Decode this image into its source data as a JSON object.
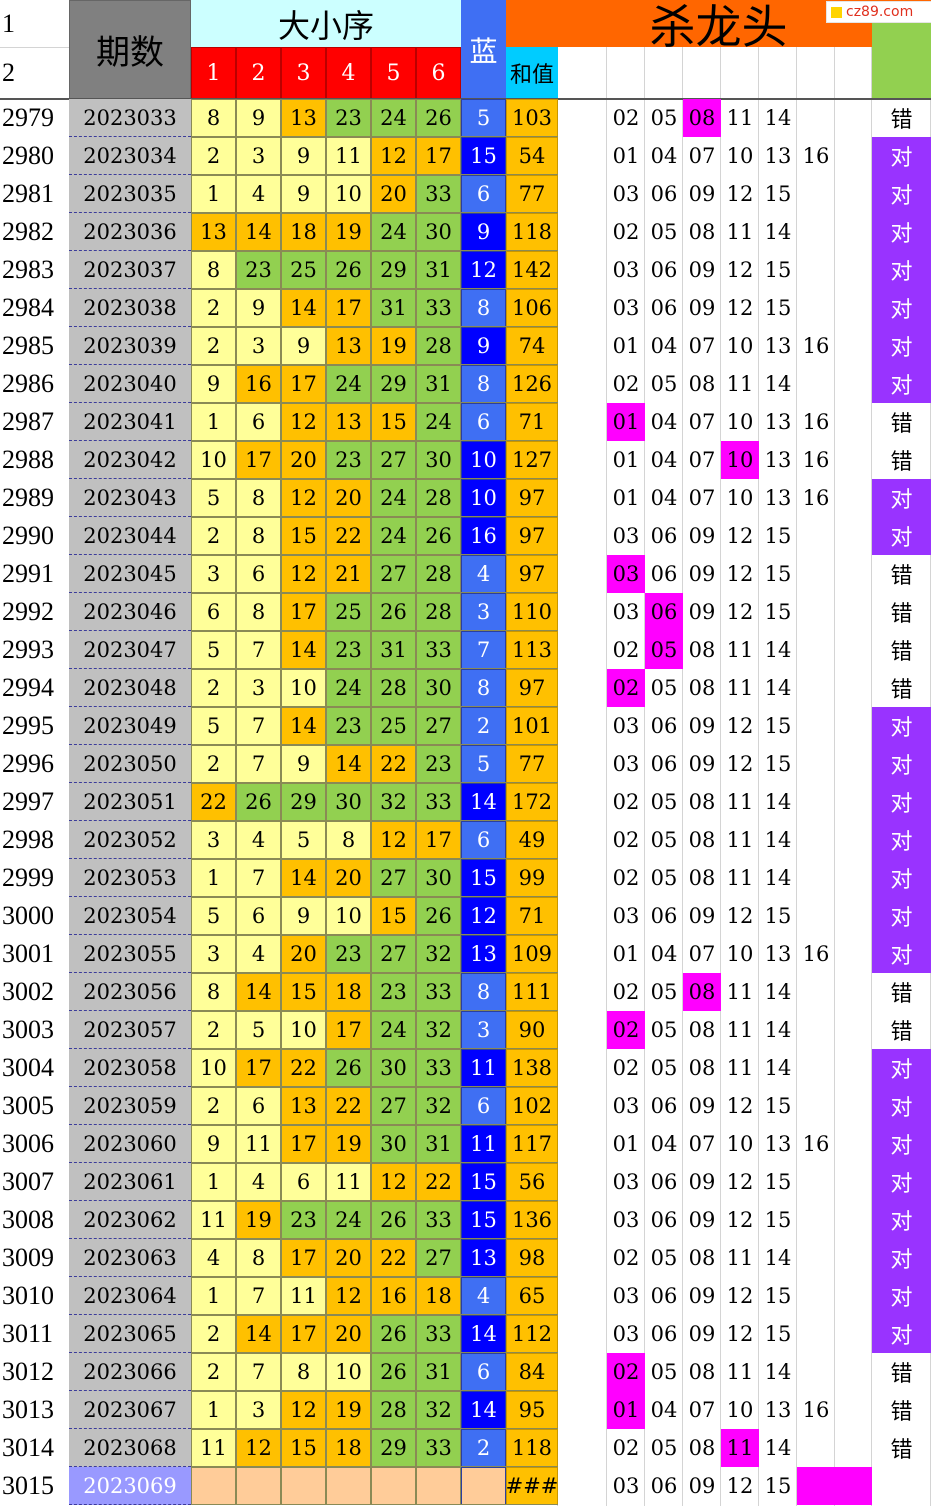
{
  "header": {
    "row_labels": [
      "1",
      "2"
    ],
    "period_title": "期数",
    "order_title": "大小序",
    "ball_cols": [
      "1",
      "2",
      "3",
      "4",
      "5",
      "6"
    ],
    "blue_title": "蓝",
    "sum_title": "和值",
    "kill_title": "杀龙头"
  },
  "watermark": "cz89.com",
  "colors": {
    "ball_yellow": "#ffff99",
    "ball_orange": "#ffc000",
    "ball_green": "#92d050",
    "blue_light": "#3f6ff3",
    "blue_dark": "#0000ff",
    "sum_bg": "#ffc000",
    "period_bg": "#c0c0c0",
    "hit_magenta": "#ff00ff",
    "right_purple": "#9933ff",
    "header_red": "#ff0000",
    "header_cyan": "#ccffff",
    "header_orange": "#ff6600",
    "header_green": "#92d050",
    "sum_header_cyan": "#00ccff",
    "last_row_bg": "#ffcc99",
    "last_period_bg": "#9999ff"
  },
  "rows": [
    {
      "no": "2979",
      "period": "2023033",
      "balls": [
        "8",
        "9",
        "13",
        "23",
        "24",
        "26"
      ],
      "ball_colors": [
        "y",
        "y",
        "o",
        "g",
        "g",
        "g"
      ],
      "blue": "5",
      "blue_dark": false,
      "sum": "103",
      "kill": [
        "02",
        "05",
        "08",
        "11",
        "14",
        ""
      ],
      "hit": 2,
      "result": "错"
    },
    {
      "no": "2980",
      "period": "2023034",
      "balls": [
        "2",
        "3",
        "9",
        "11",
        "12",
        "17"
      ],
      "ball_colors": [
        "y",
        "y",
        "y",
        "y",
        "o",
        "o"
      ],
      "blue": "15",
      "blue_dark": true,
      "sum": "54",
      "kill": [
        "01",
        "04",
        "07",
        "10",
        "13",
        "16"
      ],
      "hit": -1,
      "result": "对"
    },
    {
      "no": "2981",
      "period": "2023035",
      "balls": [
        "1",
        "4",
        "9",
        "10",
        "20",
        "33"
      ],
      "ball_colors": [
        "y",
        "y",
        "y",
        "y",
        "o",
        "g"
      ],
      "blue": "6",
      "blue_dark": false,
      "sum": "77",
      "kill": [
        "03",
        "06",
        "09",
        "12",
        "15",
        ""
      ],
      "hit": -1,
      "result": "对"
    },
    {
      "no": "2982",
      "period": "2023036",
      "balls": [
        "13",
        "14",
        "18",
        "19",
        "24",
        "30"
      ],
      "ball_colors": [
        "o",
        "o",
        "o",
        "o",
        "g",
        "g"
      ],
      "blue": "9",
      "blue_dark": true,
      "sum": "118",
      "kill": [
        "02",
        "05",
        "08",
        "11",
        "14",
        ""
      ],
      "hit": -1,
      "result": "对"
    },
    {
      "no": "2983",
      "period": "2023037",
      "balls": [
        "8",
        "23",
        "25",
        "26",
        "29",
        "31"
      ],
      "ball_colors": [
        "y",
        "g",
        "g",
        "g",
        "g",
        "g"
      ],
      "blue": "12",
      "blue_dark": true,
      "sum": "142",
      "kill": [
        "03",
        "06",
        "09",
        "12",
        "15",
        ""
      ],
      "hit": -1,
      "result": "对"
    },
    {
      "no": "2984",
      "period": "2023038",
      "balls": [
        "2",
        "9",
        "14",
        "17",
        "31",
        "33"
      ],
      "ball_colors": [
        "y",
        "y",
        "o",
        "o",
        "g",
        "g"
      ],
      "blue": "8",
      "blue_dark": false,
      "sum": "106",
      "kill": [
        "03",
        "06",
        "09",
        "12",
        "15",
        ""
      ],
      "hit": -1,
      "result": "对"
    },
    {
      "no": "2985",
      "period": "2023039",
      "balls": [
        "2",
        "3",
        "9",
        "13",
        "19",
        "28"
      ],
      "ball_colors": [
        "y",
        "y",
        "y",
        "o",
        "o",
        "g"
      ],
      "blue": "9",
      "blue_dark": true,
      "sum": "74",
      "kill": [
        "01",
        "04",
        "07",
        "10",
        "13",
        "16"
      ],
      "hit": -1,
      "result": "对"
    },
    {
      "no": "2986",
      "period": "2023040",
      "balls": [
        "9",
        "16",
        "17",
        "24",
        "29",
        "31"
      ],
      "ball_colors": [
        "y",
        "o",
        "o",
        "g",
        "g",
        "g"
      ],
      "blue": "8",
      "blue_dark": false,
      "sum": "126",
      "kill": [
        "02",
        "05",
        "08",
        "11",
        "14",
        ""
      ],
      "hit": -1,
      "result": "对"
    },
    {
      "no": "2987",
      "period": "2023041",
      "balls": [
        "1",
        "6",
        "12",
        "13",
        "15",
        "24"
      ],
      "ball_colors": [
        "y",
        "y",
        "o",
        "o",
        "o",
        "g"
      ],
      "blue": "6",
      "blue_dark": false,
      "sum": "71",
      "kill": [
        "01",
        "04",
        "07",
        "10",
        "13",
        "16"
      ],
      "hit": 0,
      "result": "错"
    },
    {
      "no": "2988",
      "period": "2023042",
      "balls": [
        "10",
        "17",
        "20",
        "23",
        "27",
        "30"
      ],
      "ball_colors": [
        "y",
        "o",
        "o",
        "g",
        "g",
        "g"
      ],
      "blue": "10",
      "blue_dark": true,
      "sum": "127",
      "kill": [
        "01",
        "04",
        "07",
        "10",
        "13",
        "16"
      ],
      "hit": 3,
      "result": "错"
    },
    {
      "no": "2989",
      "period": "2023043",
      "balls": [
        "5",
        "8",
        "12",
        "20",
        "24",
        "28"
      ],
      "ball_colors": [
        "y",
        "y",
        "o",
        "o",
        "g",
        "g"
      ],
      "blue": "10",
      "blue_dark": true,
      "sum": "97",
      "kill": [
        "01",
        "04",
        "07",
        "10",
        "13",
        "16"
      ],
      "hit": -1,
      "result": "对"
    },
    {
      "no": "2990",
      "period": "2023044",
      "balls": [
        "2",
        "8",
        "15",
        "22",
        "24",
        "26"
      ],
      "ball_colors": [
        "y",
        "y",
        "o",
        "o",
        "g",
        "g"
      ],
      "blue": "16",
      "blue_dark": true,
      "sum": "97",
      "kill": [
        "03",
        "06",
        "09",
        "12",
        "15",
        ""
      ],
      "hit": -1,
      "result": "对"
    },
    {
      "no": "2991",
      "period": "2023045",
      "balls": [
        "3",
        "6",
        "12",
        "21",
        "27",
        "28"
      ],
      "ball_colors": [
        "y",
        "y",
        "o",
        "o",
        "g",
        "g"
      ],
      "blue": "4",
      "blue_dark": false,
      "sum": "97",
      "kill": [
        "03",
        "06",
        "09",
        "12",
        "15",
        ""
      ],
      "hit": 0,
      "result": "错"
    },
    {
      "no": "2992",
      "period": "2023046",
      "balls": [
        "6",
        "8",
        "17",
        "25",
        "26",
        "28"
      ],
      "ball_colors": [
        "y",
        "y",
        "o",
        "g",
        "g",
        "g"
      ],
      "blue": "3",
      "blue_dark": false,
      "sum": "110",
      "kill": [
        "03",
        "06",
        "09",
        "12",
        "15",
        ""
      ],
      "hit": 1,
      "result": "错"
    },
    {
      "no": "2993",
      "period": "2023047",
      "balls": [
        "5",
        "7",
        "14",
        "23",
        "31",
        "33"
      ],
      "ball_colors": [
        "y",
        "y",
        "o",
        "g",
        "g",
        "g"
      ],
      "blue": "7",
      "blue_dark": false,
      "sum": "113",
      "kill": [
        "02",
        "05",
        "08",
        "11",
        "14",
        ""
      ],
      "hit": 1,
      "result": "错"
    },
    {
      "no": "2994",
      "period": "2023048",
      "balls": [
        "2",
        "3",
        "10",
        "24",
        "28",
        "30"
      ],
      "ball_colors": [
        "y",
        "y",
        "y",
        "g",
        "g",
        "g"
      ],
      "blue": "8",
      "blue_dark": false,
      "sum": "97",
      "kill": [
        "02",
        "05",
        "08",
        "11",
        "14",
        ""
      ],
      "hit": 0,
      "result": "错"
    },
    {
      "no": "2995",
      "period": "2023049",
      "balls": [
        "5",
        "7",
        "14",
        "23",
        "25",
        "27"
      ],
      "ball_colors": [
        "y",
        "y",
        "o",
        "g",
        "g",
        "g"
      ],
      "blue": "2",
      "blue_dark": false,
      "sum": "101",
      "kill": [
        "03",
        "06",
        "09",
        "12",
        "15",
        ""
      ],
      "hit": -1,
      "result": "对"
    },
    {
      "no": "2996",
      "period": "2023050",
      "balls": [
        "2",
        "7",
        "9",
        "14",
        "22",
        "23"
      ],
      "ball_colors": [
        "y",
        "y",
        "y",
        "o",
        "o",
        "g"
      ],
      "blue": "5",
      "blue_dark": false,
      "sum": "77",
      "kill": [
        "03",
        "06",
        "09",
        "12",
        "15",
        ""
      ],
      "hit": -1,
      "result": "对"
    },
    {
      "no": "2997",
      "period": "2023051",
      "balls": [
        "22",
        "26",
        "29",
        "30",
        "32",
        "33"
      ],
      "ball_colors": [
        "o",
        "g",
        "g",
        "g",
        "g",
        "g"
      ],
      "blue": "14",
      "blue_dark": true,
      "sum": "172",
      "kill": [
        "02",
        "05",
        "08",
        "11",
        "14",
        ""
      ],
      "hit": -1,
      "result": "对"
    },
    {
      "no": "2998",
      "period": "2023052",
      "balls": [
        "3",
        "4",
        "5",
        "8",
        "12",
        "17"
      ],
      "ball_colors": [
        "y",
        "y",
        "y",
        "y",
        "o",
        "o"
      ],
      "blue": "6",
      "blue_dark": false,
      "sum": "49",
      "kill": [
        "02",
        "05",
        "08",
        "11",
        "14",
        ""
      ],
      "hit": -1,
      "result": "对"
    },
    {
      "no": "2999",
      "period": "2023053",
      "balls": [
        "1",
        "7",
        "14",
        "20",
        "27",
        "30"
      ],
      "ball_colors": [
        "y",
        "y",
        "o",
        "o",
        "g",
        "g"
      ],
      "blue": "15",
      "blue_dark": true,
      "sum": "99",
      "kill": [
        "02",
        "05",
        "08",
        "11",
        "14",
        ""
      ],
      "hit": -1,
      "result": "对"
    },
    {
      "no": "3000",
      "period": "2023054",
      "balls": [
        "5",
        "6",
        "9",
        "10",
        "15",
        "26"
      ],
      "ball_colors": [
        "y",
        "y",
        "y",
        "y",
        "o",
        "g"
      ],
      "blue": "12",
      "blue_dark": true,
      "sum": "71",
      "kill": [
        "03",
        "06",
        "09",
        "12",
        "15",
        ""
      ],
      "hit": -1,
      "result": "对"
    },
    {
      "no": "3001",
      "period": "2023055",
      "balls": [
        "3",
        "4",
        "20",
        "23",
        "27",
        "32"
      ],
      "ball_colors": [
        "y",
        "y",
        "o",
        "g",
        "g",
        "g"
      ],
      "blue": "13",
      "blue_dark": true,
      "sum": "109",
      "kill": [
        "01",
        "04",
        "07",
        "10",
        "13",
        "16"
      ],
      "hit": -1,
      "result": "对"
    },
    {
      "no": "3002",
      "period": "2023056",
      "balls": [
        "8",
        "14",
        "15",
        "18",
        "23",
        "33"
      ],
      "ball_colors": [
        "y",
        "o",
        "o",
        "o",
        "g",
        "g"
      ],
      "blue": "8",
      "blue_dark": false,
      "sum": "111",
      "kill": [
        "02",
        "05",
        "08",
        "11",
        "14",
        ""
      ],
      "hit": 2,
      "result": "错"
    },
    {
      "no": "3003",
      "period": "2023057",
      "balls": [
        "2",
        "5",
        "10",
        "17",
        "24",
        "32"
      ],
      "ball_colors": [
        "y",
        "y",
        "y",
        "o",
        "g",
        "g"
      ],
      "blue": "3",
      "blue_dark": false,
      "sum": "90",
      "kill": [
        "02",
        "05",
        "08",
        "11",
        "14",
        ""
      ],
      "hit": 0,
      "result": "错"
    },
    {
      "no": "3004",
      "period": "2023058",
      "balls": [
        "10",
        "17",
        "22",
        "26",
        "30",
        "33"
      ],
      "ball_colors": [
        "y",
        "o",
        "o",
        "g",
        "g",
        "g"
      ],
      "blue": "11",
      "blue_dark": true,
      "sum": "138",
      "kill": [
        "02",
        "05",
        "08",
        "11",
        "14",
        ""
      ],
      "hit": -1,
      "result": "对"
    },
    {
      "no": "3005",
      "period": "2023059",
      "balls": [
        "2",
        "6",
        "13",
        "22",
        "27",
        "32"
      ],
      "ball_colors": [
        "y",
        "y",
        "o",
        "o",
        "g",
        "g"
      ],
      "blue": "6",
      "blue_dark": false,
      "sum": "102",
      "kill": [
        "03",
        "06",
        "09",
        "12",
        "15",
        ""
      ],
      "hit": -1,
      "result": "对"
    },
    {
      "no": "3006",
      "period": "2023060",
      "balls": [
        "9",
        "11",
        "17",
        "19",
        "30",
        "31"
      ],
      "ball_colors": [
        "y",
        "y",
        "o",
        "o",
        "g",
        "g"
      ],
      "blue": "11",
      "blue_dark": true,
      "sum": "117",
      "kill": [
        "01",
        "04",
        "07",
        "10",
        "13",
        "16"
      ],
      "hit": -1,
      "result": "对"
    },
    {
      "no": "3007",
      "period": "2023061",
      "balls": [
        "1",
        "4",
        "6",
        "11",
        "12",
        "22"
      ],
      "ball_colors": [
        "y",
        "y",
        "y",
        "y",
        "o",
        "o"
      ],
      "blue": "15",
      "blue_dark": true,
      "sum": "56",
      "kill": [
        "03",
        "06",
        "09",
        "12",
        "15",
        ""
      ],
      "hit": -1,
      "result": "对"
    },
    {
      "no": "3008",
      "period": "2023062",
      "balls": [
        "11",
        "19",
        "23",
        "24",
        "26",
        "33"
      ],
      "ball_colors": [
        "y",
        "o",
        "g",
        "g",
        "g",
        "g"
      ],
      "blue": "15",
      "blue_dark": true,
      "sum": "136",
      "kill": [
        "03",
        "06",
        "09",
        "12",
        "15",
        ""
      ],
      "hit": -1,
      "result": "对"
    },
    {
      "no": "3009",
      "period": "2023063",
      "balls": [
        "4",
        "8",
        "17",
        "20",
        "22",
        "27"
      ],
      "ball_colors": [
        "y",
        "y",
        "o",
        "o",
        "o",
        "g"
      ],
      "blue": "13",
      "blue_dark": true,
      "sum": "98",
      "kill": [
        "02",
        "05",
        "08",
        "11",
        "14",
        ""
      ],
      "hit": -1,
      "result": "对"
    },
    {
      "no": "3010",
      "period": "2023064",
      "balls": [
        "1",
        "7",
        "11",
        "12",
        "16",
        "18"
      ],
      "ball_colors": [
        "y",
        "y",
        "y",
        "o",
        "o",
        "o"
      ],
      "blue": "4",
      "blue_dark": false,
      "sum": "65",
      "kill": [
        "03",
        "06",
        "09",
        "12",
        "15",
        ""
      ],
      "hit": -1,
      "result": "对"
    },
    {
      "no": "3011",
      "period": "2023065",
      "balls": [
        "2",
        "14",
        "17",
        "20",
        "26",
        "33"
      ],
      "ball_colors": [
        "y",
        "o",
        "o",
        "o",
        "g",
        "g"
      ],
      "blue": "14",
      "blue_dark": true,
      "sum": "112",
      "kill": [
        "03",
        "06",
        "09",
        "12",
        "15",
        ""
      ],
      "hit": -1,
      "result": "对"
    },
    {
      "no": "3012",
      "period": "2023066",
      "balls": [
        "2",
        "7",
        "8",
        "10",
        "26",
        "31"
      ],
      "ball_colors": [
        "y",
        "y",
        "y",
        "y",
        "g",
        "g"
      ],
      "blue": "6",
      "blue_dark": false,
      "sum": "84",
      "kill": [
        "02",
        "05",
        "08",
        "11",
        "14",
        ""
      ],
      "hit": 0,
      "result": "错"
    },
    {
      "no": "3013",
      "period": "2023067",
      "balls": [
        "1",
        "3",
        "12",
        "19",
        "28",
        "32"
      ],
      "ball_colors": [
        "y",
        "y",
        "o",
        "o",
        "g",
        "g"
      ],
      "blue": "14",
      "blue_dark": true,
      "sum": "95",
      "kill": [
        "01",
        "04",
        "07",
        "10",
        "13",
        "16"
      ],
      "hit": 0,
      "result": "错"
    },
    {
      "no": "3014",
      "period": "2023068",
      "balls": [
        "11",
        "12",
        "15",
        "18",
        "29",
        "33"
      ],
      "ball_colors": [
        "y",
        "o",
        "o",
        "o",
        "g",
        "g"
      ],
      "blue": "2",
      "blue_dark": false,
      "sum": "118",
      "kill": [
        "02",
        "05",
        "08",
        "11",
        "14",
        ""
      ],
      "hit": 3,
      "result": "错"
    },
    {
      "no": "3015",
      "period": "2023069",
      "balls": [
        "",
        "",
        "",
        "",
        "",
        ""
      ],
      "ball_colors": [
        "p",
        "p",
        "p",
        "p",
        "p",
        "p"
      ],
      "blue": "",
      "blue_dark": false,
      "sum": "###",
      "kill": [
        "03",
        "06",
        "09",
        "12",
        "15",
        ""
      ],
      "hit": 5,
      "result": "",
      "last": true
    }
  ]
}
